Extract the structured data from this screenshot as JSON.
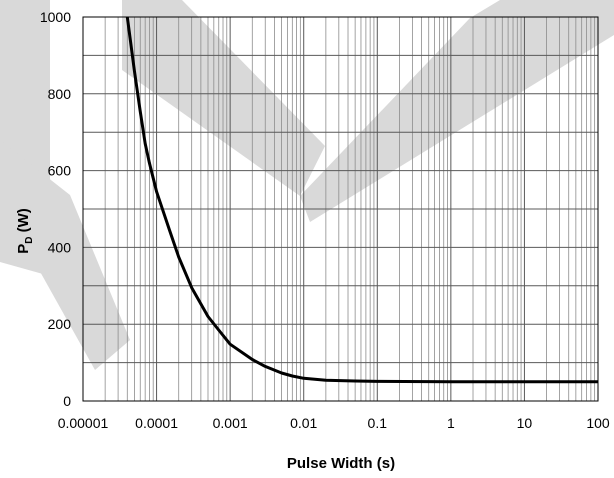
{
  "chart_data": {
    "type": "line",
    "title": "",
    "xlabel": "Pulse Width (s)",
    "ylabel_main": "P",
    "ylabel_sub": "D",
    "ylabel_unit": " (W)",
    "xscale": "log",
    "xlim": [
      1e-05,
      100
    ],
    "ylim": [
      0,
      1000
    ],
    "x_ticks": [
      {
        "value": 1e-05,
        "label": "0.00001"
      },
      {
        "value": 0.0001,
        "label": "0.0001"
      },
      {
        "value": 0.001,
        "label": "0.001"
      },
      {
        "value": 0.01,
        "label": "0.01"
      },
      {
        "value": 0.1,
        "label": "0.1"
      },
      {
        "value": 1,
        "label": "1"
      },
      {
        "value": 10,
        "label": "10"
      },
      {
        "value": 100,
        "label": "100"
      }
    ],
    "y_ticks": [
      {
        "value": 0,
        "label": "0"
      },
      {
        "value": 200,
        "label": "200"
      },
      {
        "value": 400,
        "label": "400"
      },
      {
        "value": 600,
        "label": "600"
      },
      {
        "value": 800,
        "label": "800"
      },
      {
        "value": 1000,
        "label": "1000"
      }
    ],
    "grid": true,
    "series": [
      {
        "color": "#000000",
        "points": [
          [
            4e-05,
            1000
          ],
          [
            5e-05,
            860
          ],
          [
            6e-05,
            755
          ],
          [
            7e-05,
            670
          ],
          [
            8e-05,
            620
          ],
          [
            0.0001,
            545
          ],
          [
            0.00015,
            445
          ],
          [
            0.0002,
            375
          ],
          [
            0.0003,
            295
          ],
          [
            0.0005,
            220
          ],
          [
            0.0007,
            185
          ],
          [
            0.001,
            148
          ],
          [
            0.002,
            108
          ],
          [
            0.003,
            90
          ],
          [
            0.005,
            73
          ],
          [
            0.007,
            65
          ],
          [
            0.01,
            59
          ],
          [
            0.02,
            54
          ],
          [
            0.05,
            52
          ],
          [
            0.1,
            51
          ],
          [
            1,
            50
          ],
          [
            10,
            50
          ],
          [
            100,
            50
          ]
        ]
      }
    ],
    "watermark_color": "#d9d9d9"
  }
}
